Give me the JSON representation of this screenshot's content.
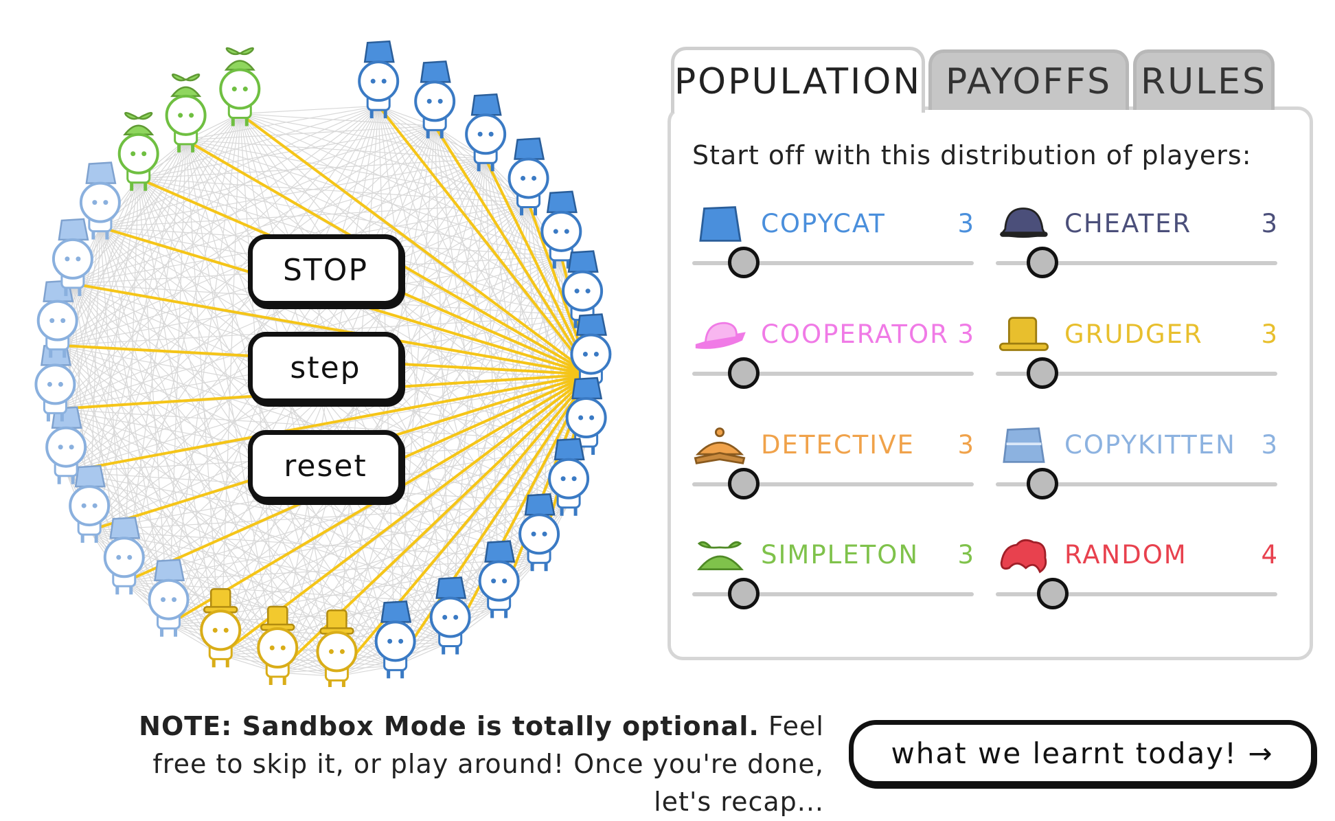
{
  "tabs": [
    {
      "label": "POPULATION",
      "active": true
    },
    {
      "label": "PAYOFFS",
      "active": false
    },
    {
      "label": "RULES",
      "active": false
    }
  ],
  "controls": {
    "stop": "STOP",
    "step": "step",
    "reset": "reset"
  },
  "population": {
    "intro": "Start off with this distribution of players:",
    "strategies": [
      {
        "name": "COPYCAT",
        "count": "3",
        "color": "#4a8fdc",
        "hat": "copycat-hat-icon"
      },
      {
        "name": "CHEATER",
        "count": "3",
        "color": "#4b4f7a",
        "hat": "cheater-hat-icon"
      },
      {
        "name": "COOPERATOR",
        "count": "3",
        "color": "#f07ae6",
        "hat": "cooperator-hat-icon"
      },
      {
        "name": "GRUDGER",
        "count": "3",
        "color": "#e8bf2d",
        "hat": "grudger-hat-icon"
      },
      {
        "name": "DETECTIVE",
        "count": "3",
        "color": "#f0a24a",
        "hat": "detective-hat-icon"
      },
      {
        "name": "COPYKITTEN",
        "count": "3",
        "color": "#8cb2e0",
        "hat": "copykitten-hat-icon"
      },
      {
        "name": "SIMPLETON",
        "count": "3",
        "color": "#7fc24b",
        "hat": "simpleton-hat-icon"
      },
      {
        "name": "RANDOM",
        "count": "4",
        "color": "#e8414e",
        "hat": "random-hat-icon"
      }
    ]
  },
  "note": {
    "bold": "NOTE: Sandbox Mode is totally optional.",
    "rest": "Feel free to skip it, or play around! Once you're done, let's recap..."
  },
  "next_button": "what we learnt today! →",
  "arena": {
    "players": [
      {
        "type": "copycat"
      },
      {
        "type": "copycat"
      },
      {
        "type": "copycat"
      },
      {
        "type": "copycat"
      },
      {
        "type": "copycat"
      },
      {
        "type": "copycat"
      },
      {
        "type": "copycat"
      },
      {
        "type": "copycat"
      },
      {
        "type": "copycat"
      },
      {
        "type": "copycat"
      },
      {
        "type": "copycat"
      },
      {
        "type": "copycat"
      },
      {
        "type": "copycat"
      },
      {
        "type": "grudger"
      },
      {
        "type": "grudger"
      },
      {
        "type": "grudger"
      },
      {
        "type": "copykitten"
      },
      {
        "type": "copykitten"
      },
      {
        "type": "copykitten"
      },
      {
        "type": "copykitten"
      },
      {
        "type": "copykitten"
      },
      {
        "type": "copykitten"
      },
      {
        "type": "copykitten"
      },
      {
        "type": "copykitten"
      },
      {
        "type": "simpleton"
      },
      {
        "type": "simpleton"
      },
      {
        "type": "simpleton"
      }
    ],
    "colors": {
      "copycat": "#4a8fdc",
      "copykitten": "#a9c8ee",
      "grudger": "#f2c92e",
      "simpleton": "#8fd65e",
      "line": "#f5c518",
      "mesh": "#d8d8d8"
    }
  }
}
